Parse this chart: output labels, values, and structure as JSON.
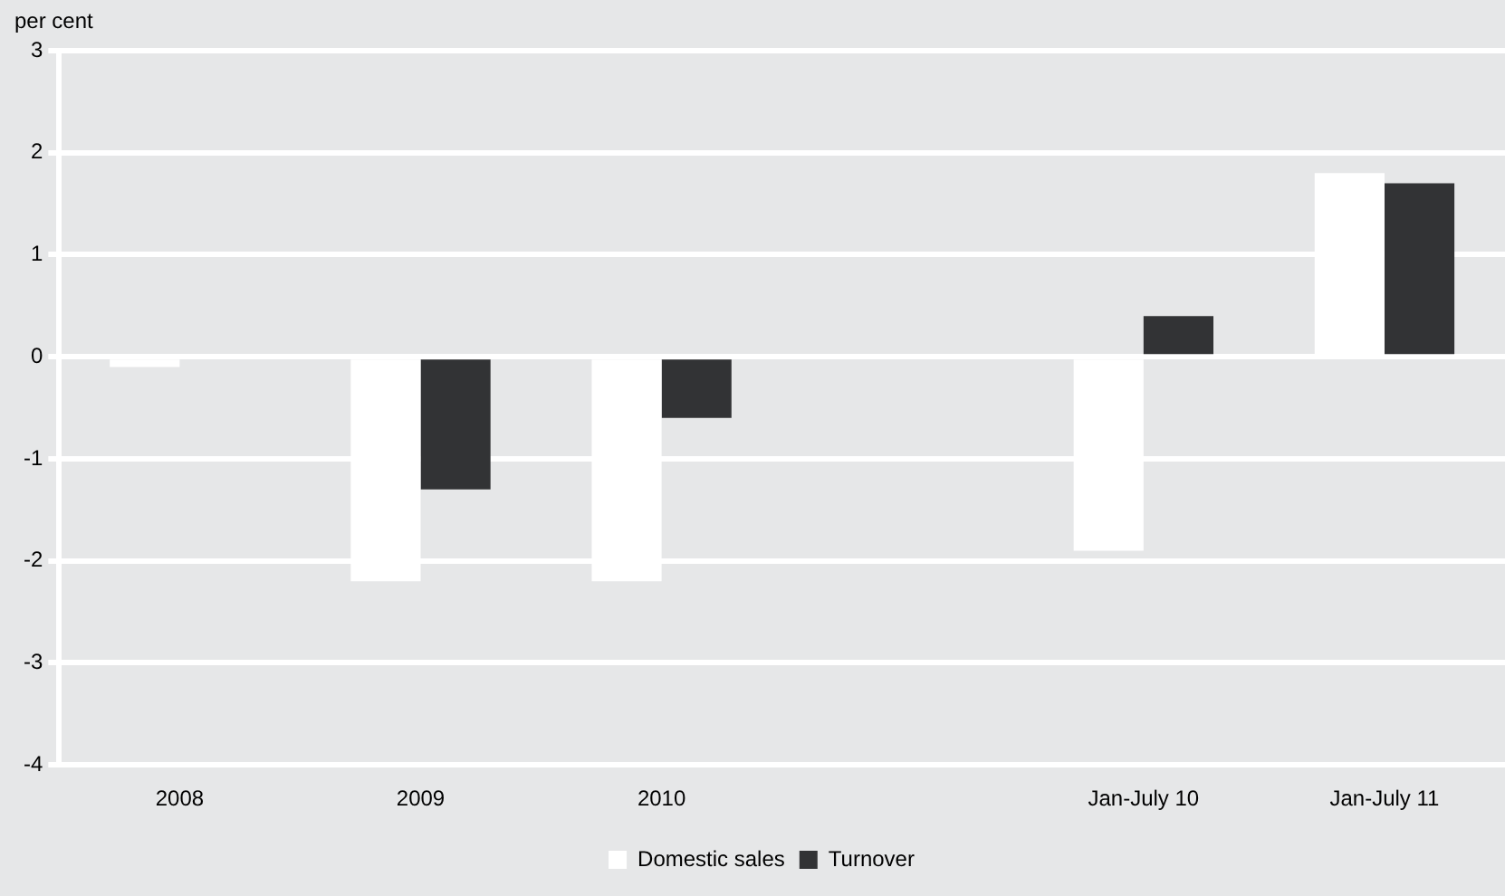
{
  "chart_data": {
    "type": "bar",
    "ylabel": "per cent",
    "categories": [
      "2008",
      "2009",
      "2010",
      null,
      "Jan-July 10",
      "Jan-July 11"
    ],
    "series": [
      {
        "name": "Domestic sales",
        "color": "#ffffff",
        "values": [
          -0.1,
          -2.2,
          -2.2,
          null,
          -1.9,
          1.8
        ]
      },
      {
        "name": "Turnover",
        "color": "#323335",
        "values": [
          null,
          -1.3,
          -0.6,
          null,
          0.4,
          1.7
        ]
      }
    ],
    "ylim": [
      -4,
      3
    ],
    "yticks": [
      -4,
      -3,
      -2,
      -1,
      0,
      1,
      2,
      3
    ],
    "grid": "y",
    "legend": "bottom"
  }
}
